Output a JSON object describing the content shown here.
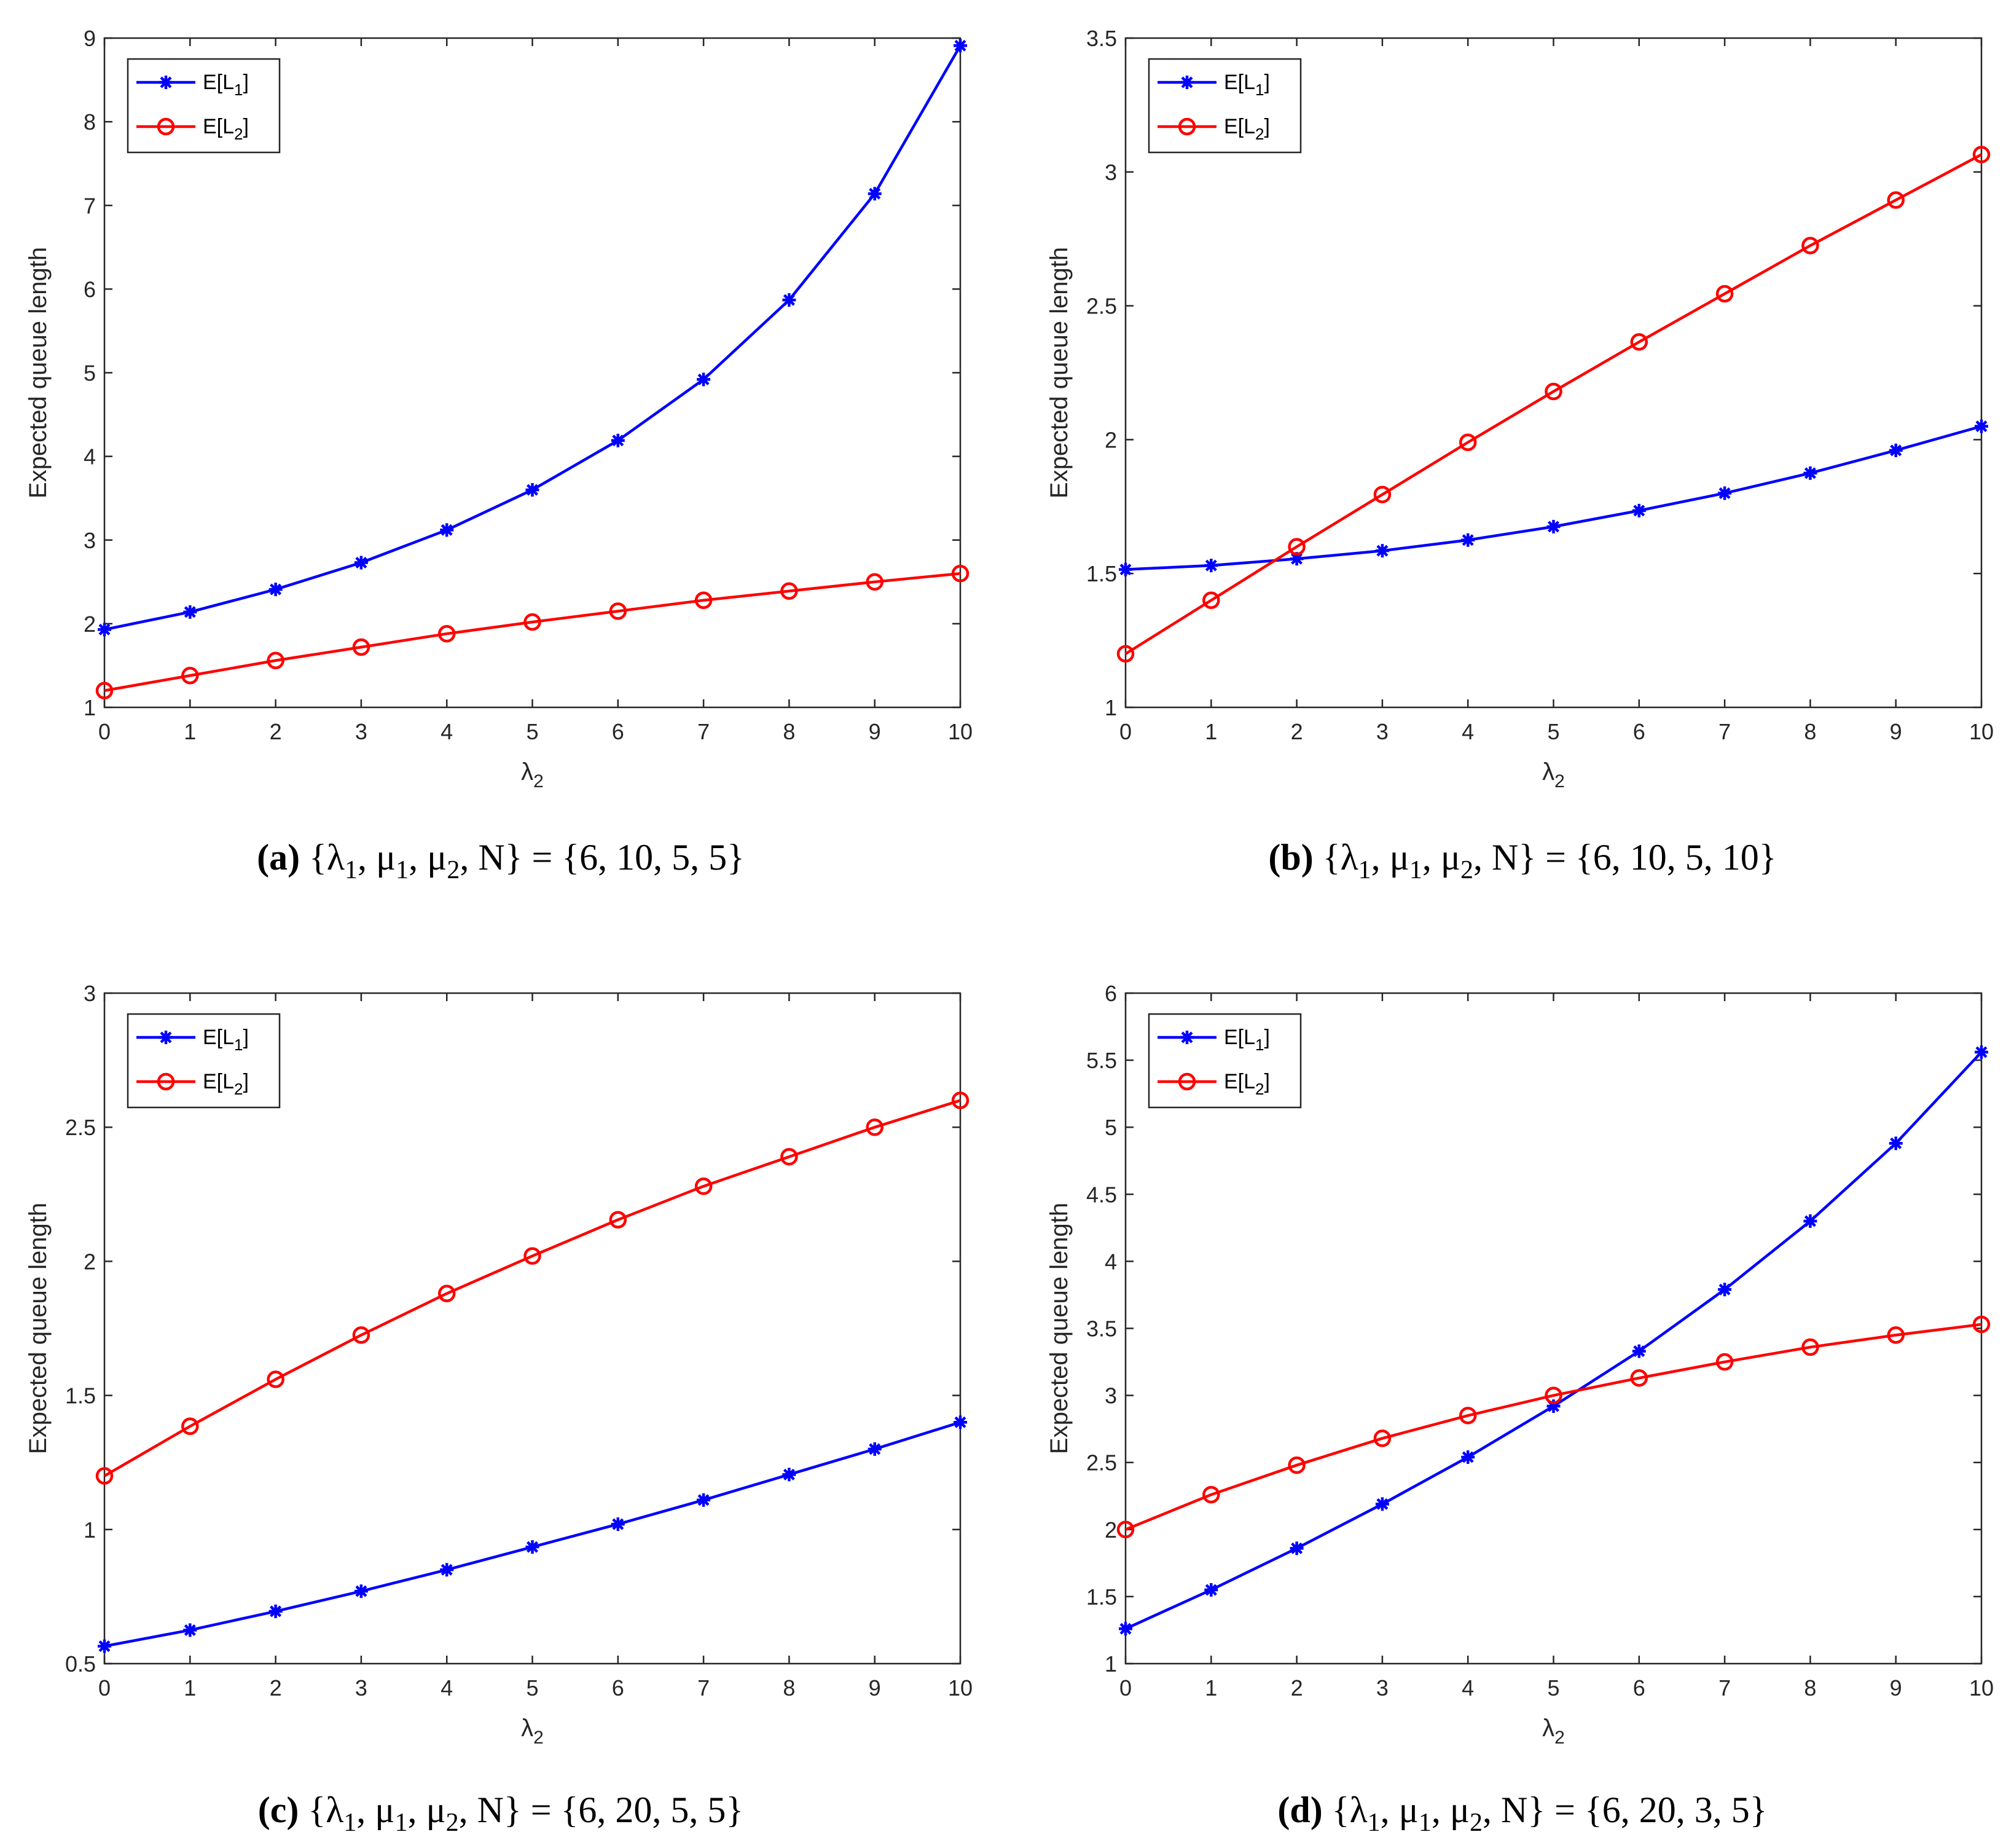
{
  "colors": {
    "series1": "#0000ff",
    "series2": "#ff0000",
    "axis": "#262626"
  },
  "chart_data": [
    {
      "type": "line",
      "panel": "a",
      "x": [
        0,
        1,
        2,
        3,
        4,
        5,
        6,
        7,
        8,
        9,
        10
      ],
      "xlim": [
        0,
        10
      ],
      "ylim": [
        1,
        9
      ],
      "yticks": [
        "1",
        "2",
        "3",
        "4",
        "5",
        "6",
        "7",
        "8",
        "9"
      ],
      "xticks": [
        "0",
        "1",
        "2",
        "3",
        "4",
        "5",
        "6",
        "7",
        "8",
        "9",
        "10"
      ],
      "xlabel": "λ",
      "xlabel_sub": "2",
      "ylabel": "Expected queue length",
      "legend_position": "top-left",
      "series": [
        {
          "name": "E[L",
          "name_sub": "1",
          "name_end": "]",
          "marker": "star",
          "color": "#0000ff",
          "values": [
            1.93,
            2.14,
            2.41,
            2.73,
            3.12,
            3.6,
            4.19,
            4.92,
            5.87,
            7.14,
            8.91
          ]
        },
        {
          "name": "E[L",
          "name_sub": "2",
          "name_end": "]",
          "marker": "circle",
          "color": "#ff0000",
          "values": [
            1.2,
            1.38,
            1.56,
            1.72,
            1.88,
            2.02,
            2.15,
            2.28,
            2.39,
            2.5,
            2.6
          ]
        }
      ],
      "caption": {
        "label": "(a)",
        "text": "{λ1, μ1, μ2, N} = {6, 10, 5, 5}",
        "parts": [
          "{λ",
          "1",
          ", μ",
          "1",
          ", μ",
          "2",
          ", N} = {6, 10, 5, 5}"
        ]
      }
    },
    {
      "type": "line",
      "panel": "b",
      "x": [
        0,
        1,
        2,
        3,
        4,
        5,
        6,
        7,
        8,
        9,
        10
      ],
      "xlim": [
        0,
        10
      ],
      "ylim": [
        1,
        3.5
      ],
      "yticks": [
        "1",
        "1.5",
        "2",
        "2.5",
        "3",
        "3.5"
      ],
      "xticks": [
        "0",
        "1",
        "2",
        "3",
        "4",
        "5",
        "6",
        "7",
        "8",
        "9",
        "10"
      ],
      "xlabel": "λ",
      "xlabel_sub": "2",
      "ylabel": "Expected queue length",
      "legend_position": "top-left",
      "series": [
        {
          "name": "E[L",
          "name_sub": "1",
          "name_end": "]",
          "marker": "star",
          "color": "#0000ff",
          "values": [
            1.515,
            1.53,
            1.555,
            1.585,
            1.625,
            1.675,
            1.735,
            1.8,
            1.875,
            1.96,
            2.05
          ]
        },
        {
          "name": "E[L",
          "name_sub": "2",
          "name_end": "]",
          "marker": "circle",
          "color": "#ff0000",
          "values": [
            1.2,
            1.4,
            1.6,
            1.795,
            1.99,
            2.18,
            2.365,
            2.545,
            2.725,
            2.895,
            3.065
          ]
        }
      ],
      "caption": {
        "label": "(b)",
        "text": "{λ1, μ1, μ2, N} = {6, 10, 5, 10}",
        "parts": [
          "{λ",
          "1",
          ", μ",
          "1",
          ", μ",
          "2",
          ", N} = {6, 10, 5, 10}"
        ]
      }
    },
    {
      "type": "line",
      "panel": "c",
      "x": [
        0,
        1,
        2,
        3,
        4,
        5,
        6,
        7,
        8,
        9,
        10
      ],
      "xlim": [
        0,
        10
      ],
      "ylim": [
        0.5,
        3
      ],
      "yticks": [
        "0.5",
        "1",
        "1.5",
        "2",
        "2.5",
        "3"
      ],
      "xticks": [
        "0",
        "1",
        "2",
        "3",
        "4",
        "5",
        "6",
        "7",
        "8",
        "9",
        "10"
      ],
      "xlabel": "λ",
      "xlabel_sub": "2",
      "ylabel": "Expected queue length",
      "legend_position": "top-left",
      "series": [
        {
          "name": "E[L",
          "name_sub": "1",
          "name_end": "]",
          "marker": "star",
          "color": "#0000ff",
          "values": [
            0.565,
            0.625,
            0.695,
            0.77,
            0.85,
            0.935,
            1.02,
            1.11,
            1.205,
            1.3,
            1.4
          ]
        },
        {
          "name": "E[L",
          "name_sub": "2",
          "name_end": "]",
          "marker": "circle",
          "color": "#ff0000",
          "values": [
            1.2,
            1.385,
            1.56,
            1.725,
            1.88,
            2.02,
            2.155,
            2.28,
            2.39,
            2.5,
            2.6
          ]
        }
      ],
      "caption": {
        "label": "(c)",
        "text": "{λ1, μ1, μ2, N} = {6, 20, 5, 5}",
        "parts": [
          "{λ",
          "1",
          ", μ",
          "1",
          ", μ",
          "2",
          ", N} = {6, 20, 5, 5}"
        ]
      }
    },
    {
      "type": "line",
      "panel": "d",
      "x": [
        0,
        1,
        2,
        3,
        4,
        5,
        6,
        7,
        8,
        9,
        10
      ],
      "xlim": [
        0,
        10
      ],
      "ylim": [
        1,
        6
      ],
      "yticks": [
        "1",
        "1.5",
        "2",
        "2.5",
        "3",
        "3.5",
        "4",
        "4.5",
        "5",
        "5.5",
        "6"
      ],
      "xticks": [
        "0",
        "1",
        "2",
        "3",
        "4",
        "5",
        "6",
        "7",
        "8",
        "9",
        "10"
      ],
      "xlabel": "λ",
      "xlabel_sub": "2",
      "ylabel": "Expected queue length",
      "legend_position": "top-left",
      "series": [
        {
          "name": "E[L",
          "name_sub": "1",
          "name_end": "]",
          "marker": "star",
          "color": "#0000ff",
          "values": [
            1.26,
            1.55,
            1.86,
            2.19,
            2.54,
            2.92,
            3.33,
            3.79,
            4.3,
            4.88,
            5.56
          ]
        },
        {
          "name": "E[L",
          "name_sub": "2",
          "name_end": "]",
          "marker": "circle",
          "color": "#ff0000",
          "values": [
            2.0,
            2.26,
            2.48,
            2.68,
            2.85,
            3.0,
            3.13,
            3.25,
            3.36,
            3.45,
            3.53
          ]
        }
      ],
      "caption": {
        "label": "(d)",
        "text": "{λ1, μ1, μ2, N} = {6, 20, 3, 5}",
        "parts": [
          "{λ",
          "1",
          ", μ",
          "1",
          ", μ",
          "2",
          ", N} = {6, 20, 3, 5}"
        ]
      }
    }
  ]
}
